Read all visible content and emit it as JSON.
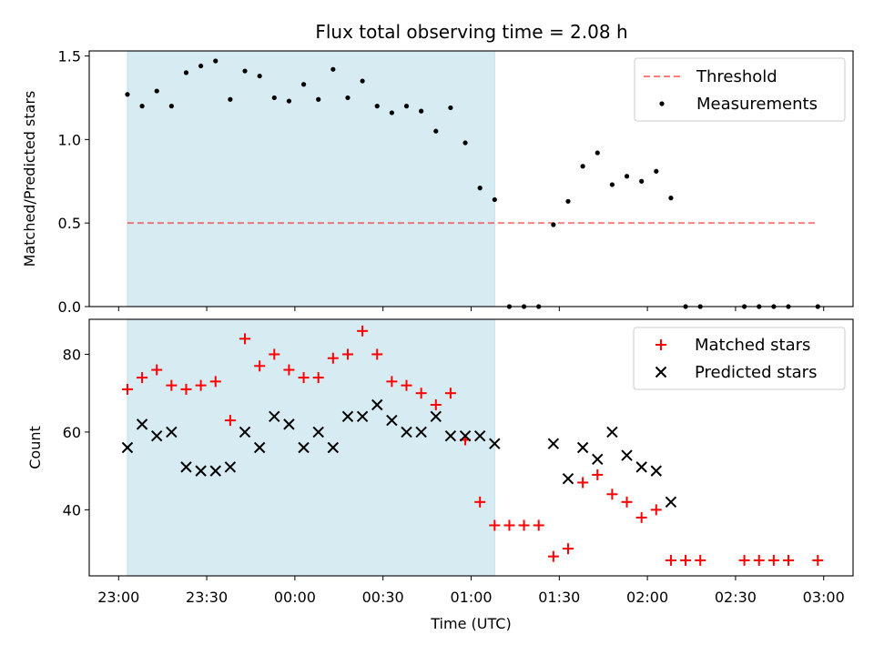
{
  "title": "Flux total observing time = 2.08 h",
  "colors": {
    "shade": "#add8e6",
    "threshold": "#ff0000",
    "measurement": "#000000",
    "matched": "#ff0000",
    "predicted": "#000000"
  },
  "chart_data": [
    {
      "type": "scatter",
      "panel": "top",
      "xlabel": "",
      "ylabel": "Matched/Predicted stars",
      "ylim": [
        0,
        1.53
      ],
      "yticks": [
        0.0,
        0.5,
        1.0,
        1.5
      ],
      "ytick_labels": [
        "0.0",
        "0.5",
        "1.0",
        "1.5"
      ],
      "xlim": [
        "23:00",
        "03:00"
      ],
      "shaded_span": [
        "23:03",
        "01:08"
      ],
      "legend": {
        "position": "top-right",
        "entries": [
          "Threshold",
          "Measurements"
        ]
      },
      "threshold": {
        "name": "Threshold",
        "value": 0.5,
        "x_range": [
          "23:03",
          "02:58"
        ]
      },
      "series": [
        {
          "name": "Measurements",
          "points": [
            [
              "23:03",
              1.27
            ],
            [
              "23:08",
              1.2
            ],
            [
              "23:13",
              1.29
            ],
            [
              "23:18",
              1.2
            ],
            [
              "23:23",
              1.4
            ],
            [
              "23:28",
              1.44
            ],
            [
              "23:33",
              1.47
            ],
            [
              "23:38",
              1.24
            ],
            [
              "23:43",
              1.41
            ],
            [
              "23:48",
              1.38
            ],
            [
              "23:53",
              1.25
            ],
            [
              "23:58",
              1.23
            ],
            [
              "00:03",
              1.33
            ],
            [
              "00:08",
              1.24
            ],
            [
              "00:13",
              1.42
            ],
            [
              "00:18",
              1.25
            ],
            [
              "00:23",
              1.35
            ],
            [
              "00:28",
              1.2
            ],
            [
              "00:33",
              1.16
            ],
            [
              "00:38",
              1.2
            ],
            [
              "00:43",
              1.17
            ],
            [
              "00:48",
              1.05
            ],
            [
              "00:53",
              1.19
            ],
            [
              "00:58",
              0.98
            ],
            [
              "01:03",
              0.71
            ],
            [
              "01:08",
              0.64
            ],
            [
              "01:13",
              0.0
            ],
            [
              "01:18",
              0.0
            ],
            [
              "01:23",
              0.0
            ],
            [
              "01:28",
              0.49
            ],
            [
              "01:33",
              0.63
            ],
            [
              "01:38",
              0.84
            ],
            [
              "01:43",
              0.92
            ],
            [
              "01:48",
              0.73
            ],
            [
              "01:53",
              0.78
            ],
            [
              "01:58",
              0.75
            ],
            [
              "02:03",
              0.81
            ],
            [
              "02:08",
              0.65
            ],
            [
              "02:13",
              0.0
            ],
            [
              "02:18",
              0.0
            ],
            [
              "02:33",
              0.0
            ],
            [
              "02:38",
              0.0
            ],
            [
              "02:43",
              0.0
            ],
            [
              "02:48",
              0.0
            ],
            [
              "02:58",
              0.0
            ]
          ]
        }
      ]
    },
    {
      "type": "scatter",
      "panel": "bottom",
      "xlabel": "Time (UTC)",
      "ylabel": "Count",
      "ylim": [
        23,
        89
      ],
      "yticks": [
        40,
        60,
        80
      ],
      "ytick_labels": [
        "40",
        "60",
        "80"
      ],
      "xlim": [
        "23:00",
        "03:00"
      ],
      "xticks": [
        "23:00",
        "23:30",
        "00:00",
        "00:30",
        "01:00",
        "01:30",
        "02:00",
        "02:30",
        "03:00"
      ],
      "shaded_span": [
        "23:03",
        "01:08"
      ],
      "legend": {
        "position": "top-right",
        "entries": [
          "Matched stars",
          "Predicted stars"
        ]
      },
      "series": [
        {
          "name": "Matched stars",
          "marker": "+",
          "points": [
            [
              "23:03",
              71
            ],
            [
              "23:08",
              74
            ],
            [
              "23:13",
              76
            ],
            [
              "23:18",
              72
            ],
            [
              "23:23",
              71
            ],
            [
              "23:28",
              72
            ],
            [
              "23:33",
              73
            ],
            [
              "23:38",
              63
            ],
            [
              "23:43",
              84
            ],
            [
              "23:48",
              77
            ],
            [
              "23:53",
              80
            ],
            [
              "23:58",
              76
            ],
            [
              "00:03",
              74
            ],
            [
              "00:08",
              74
            ],
            [
              "00:13",
              79
            ],
            [
              "00:18",
              80
            ],
            [
              "00:23",
              86
            ],
            [
              "00:28",
              80
            ],
            [
              "00:33",
              73
            ],
            [
              "00:38",
              72
            ],
            [
              "00:43",
              70
            ],
            [
              "00:48",
              67
            ],
            [
              "00:53",
              70
            ],
            [
              "00:58",
              58
            ],
            [
              "01:03",
              42
            ],
            [
              "01:08",
              36
            ],
            [
              "01:13",
              36
            ],
            [
              "01:18",
              36
            ],
            [
              "01:23",
              36
            ],
            [
              "01:28",
              28
            ],
            [
              "01:33",
              30
            ],
            [
              "01:38",
              47
            ],
            [
              "01:43",
              49
            ],
            [
              "01:48",
              44
            ],
            [
              "01:53",
              42
            ],
            [
              "01:58",
              38
            ],
            [
              "02:03",
              40
            ],
            [
              "02:08",
              27
            ],
            [
              "02:13",
              27
            ],
            [
              "02:18",
              27
            ],
            [
              "02:33",
              27
            ],
            [
              "02:38",
              27
            ],
            [
              "02:43",
              27
            ],
            [
              "02:48",
              27
            ],
            [
              "02:58",
              27
            ]
          ]
        },
        {
          "name": "Predicted stars",
          "marker": "x",
          "points": [
            [
              "23:03",
              56
            ],
            [
              "23:08",
              62
            ],
            [
              "23:13",
              59
            ],
            [
              "23:18",
              60
            ],
            [
              "23:23",
              51
            ],
            [
              "23:28",
              50
            ],
            [
              "23:33",
              50
            ],
            [
              "23:38",
              51
            ],
            [
              "23:43",
              60
            ],
            [
              "23:48",
              56
            ],
            [
              "23:53",
              64
            ],
            [
              "23:58",
              62
            ],
            [
              "00:03",
              56
            ],
            [
              "00:08",
              60
            ],
            [
              "00:13",
              56
            ],
            [
              "00:18",
              64
            ],
            [
              "00:23",
              64
            ],
            [
              "00:28",
              67
            ],
            [
              "00:33",
              63
            ],
            [
              "00:38",
              60
            ],
            [
              "00:43",
              60
            ],
            [
              "00:48",
              64
            ],
            [
              "00:53",
              59
            ],
            [
              "00:58",
              59
            ],
            [
              "01:03",
              59
            ],
            [
              "01:08",
              57
            ],
            [
              "01:28",
              57
            ],
            [
              "01:33",
              48
            ],
            [
              "01:38",
              56
            ],
            [
              "01:43",
              53
            ],
            [
              "01:48",
              60
            ],
            [
              "01:53",
              54
            ],
            [
              "01:58",
              51
            ],
            [
              "02:03",
              50
            ],
            [
              "02:08",
              42
            ]
          ]
        }
      ]
    }
  ]
}
